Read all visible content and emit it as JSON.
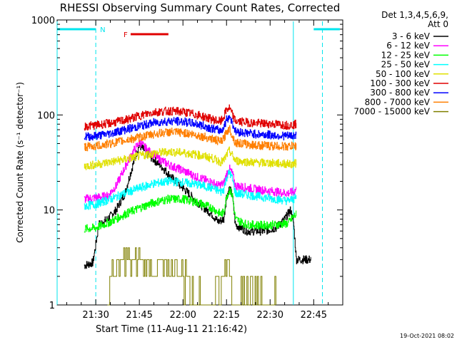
{
  "chart_data": {
    "type": "line",
    "title": "RHESSI Observing Summary Count Rates, Corrected",
    "xlabel": "Start Time (11-Aug-11 21:16:42)",
    "ylabel": "Corrected Count Rate (s⁻¹ detector⁻¹)",
    "y_scale": "log",
    "ylim": [
      1,
      1000
    ],
    "xlim": [
      "21:16",
      "22:54"
    ],
    "x_unit": "minutes after 21:00",
    "xlim_min": [
      16.7,
      115
    ],
    "x_ticks": [
      {
        "label": "21:30",
        "min": 30
      },
      {
        "label": "21:45",
        "min": 45
      },
      {
        "label": "22:00",
        "min": 60
      },
      {
        "label": "22:15",
        "min": 75
      },
      {
        "label": "22:30",
        "min": 90
      },
      {
        "label": "22:45",
        "min": 105
      }
    ],
    "y_ticks": [
      {
        "label": "1",
        "v": 1
      },
      {
        "label": "10",
        "v": 10
      },
      {
        "label": "100",
        "v": 100
      },
      {
        "label": "1000",
        "v": 1000
      }
    ],
    "grid": false,
    "legend_position": "top-right (outside plot)",
    "legend_header": [
      "Det 1,3,4,5,6,9,",
      "Att 0"
    ],
    "annotations": [
      {
        "label": "N",
        "color": "#00e5ee",
        "kind": "night",
        "segments": [
          [
            16.7,
            30
          ],
          [
            105,
            114
          ]
        ]
      },
      {
        "label": "F",
        "color": "#e00000",
        "kind": "flare",
        "segments": [
          [
            42,
            55
          ]
        ]
      }
    ],
    "vlines": [
      {
        "min": 16.7,
        "style": "solid",
        "color": "#00e5ee"
      },
      {
        "min": 30,
        "style": "dashed",
        "color": "#00e5ee"
      },
      {
        "min": 98,
        "style": "solid",
        "color": "#00e5ee"
      },
      {
        "min": 108,
        "style": "dashed",
        "color": "#00e5ee"
      }
    ],
    "footer": "19-Oct-2021 08:02",
    "series": [
      {
        "name": "3 - 6 keV",
        "color": "#000000",
        "points": [
          [
            26,
            2.6
          ],
          [
            29,
            2.8
          ],
          [
            31,
            7
          ],
          [
            34,
            8
          ],
          [
            37,
            10
          ],
          [
            40,
            15
          ],
          [
            42,
            25
          ],
          [
            44,
            40
          ],
          [
            45,
            48
          ],
          [
            48,
            38
          ],
          [
            52,
            30
          ],
          [
            56,
            22
          ],
          [
            60,
            17
          ],
          [
            65,
            12
          ],
          [
            70,
            9
          ],
          [
            72,
            7.5
          ],
          [
            74,
            8
          ],
          [
            75,
            14
          ],
          [
            76,
            17
          ],
          [
            77,
            14
          ],
          [
            78,
            7
          ],
          [
            82,
            6
          ],
          [
            88,
            6
          ],
          [
            92,
            6.5
          ],
          [
            95,
            8
          ],
          [
            97,
            10
          ],
          [
            98,
            7.5
          ],
          [
            99,
            3
          ],
          [
            102,
            3
          ],
          [
            104,
            3
          ]
        ]
      },
      {
        "name": "6 - 12 keV",
        "color": "#ff00ff",
        "points": [
          [
            26,
            13
          ],
          [
            30,
            13.5
          ],
          [
            34,
            14
          ],
          [
            37,
            18
          ],
          [
            40,
            28
          ],
          [
            43,
            42
          ],
          [
            45,
            52
          ],
          [
            48,
            42
          ],
          [
            52,
            34
          ],
          [
            56,
            29
          ],
          [
            60,
            26
          ],
          [
            65,
            22
          ],
          [
            70,
            19.5
          ],
          [
            72,
            18
          ],
          [
            74,
            19
          ],
          [
            75,
            24
          ],
          [
            76,
            27
          ],
          [
            77,
            24
          ],
          [
            78,
            18
          ],
          [
            85,
            16.5
          ],
          [
            92,
            15.5
          ],
          [
            96,
            15
          ],
          [
            98,
            15.5
          ],
          [
            99,
            16.5
          ]
        ]
      },
      {
        "name": "12 - 25 keV",
        "color": "#00ff00",
        "points": [
          [
            26,
            6.3
          ],
          [
            30,
            6.5
          ],
          [
            35,
            7.5
          ],
          [
            40,
            9
          ],
          [
            45,
            10.5
          ],
          [
            50,
            12
          ],
          [
            55,
            13
          ],
          [
            60,
            13
          ],
          [
            65,
            12
          ],
          [
            70,
            10.5
          ],
          [
            73,
            9
          ],
          [
            74,
            9.5
          ],
          [
            75,
            14
          ],
          [
            76,
            16.5
          ],
          [
            77,
            14
          ],
          [
            78,
            8
          ],
          [
            82,
            7
          ],
          [
            88,
            6.9
          ],
          [
            92,
            7
          ],
          [
            96,
            7.2
          ],
          [
            98,
            8.5
          ],
          [
            99,
            9
          ]
        ]
      },
      {
        "name": "25 - 50 keV",
        "color": "#00ffff",
        "points": [
          [
            26,
            11
          ],
          [
            30,
            11.5
          ],
          [
            35,
            13
          ],
          [
            40,
            15
          ],
          [
            45,
            17
          ],
          [
            50,
            19
          ],
          [
            55,
            20
          ],
          [
            60,
            19.5
          ],
          [
            65,
            18.5
          ],
          [
            70,
            17
          ],
          [
            73,
            15.5
          ],
          [
            74,
            16.5
          ],
          [
            75,
            22
          ],
          [
            76,
            25
          ],
          [
            77,
            21
          ],
          [
            78,
            15
          ],
          [
            85,
            14
          ],
          [
            92,
            13
          ],
          [
            96,
            12.5
          ],
          [
            98,
            13
          ],
          [
            99,
            13.5
          ]
        ]
      },
      {
        "name": "50 - 100 keV",
        "color": "#e0e000",
        "points": [
          [
            26,
            29
          ],
          [
            30,
            30
          ],
          [
            35,
            32
          ],
          [
            40,
            34
          ],
          [
            45,
            37
          ],
          [
            50,
            39.5
          ],
          [
            55,
            41
          ],
          [
            60,
            40
          ],
          [
            65,
            38
          ],
          [
            70,
            35
          ],
          [
            73,
            32
          ],
          [
            74,
            33
          ],
          [
            75,
            38
          ],
          [
            76,
            42
          ],
          [
            77,
            37
          ],
          [
            78,
            33
          ],
          [
            85,
            31.5
          ],
          [
            92,
            31
          ],
          [
            96,
            30.5
          ],
          [
            98,
            30.5
          ],
          [
            99,
            31
          ]
        ]
      },
      {
        "name": "100 - 300 keV",
        "color": "#e00000",
        "points": [
          [
            26,
            76
          ],
          [
            30,
            78
          ],
          [
            35,
            82
          ],
          [
            40,
            88
          ],
          [
            45,
            98
          ],
          [
            50,
            107
          ],
          [
            55,
            110
          ],
          [
            60,
            108
          ],
          [
            65,
            100
          ],
          [
            70,
            90
          ],
          [
            73,
            85
          ],
          [
            74,
            95
          ],
          [
            75,
            115
          ],
          [
            76,
            118
          ],
          [
            77,
            100
          ],
          [
            78,
            86
          ],
          [
            85,
            82
          ],
          [
            92,
            80
          ],
          [
            96,
            78
          ],
          [
            98,
            79
          ],
          [
            99,
            80
          ]
        ]
      },
      {
        "name": "300 - 800 keV",
        "color": "#0000ff",
        "points": [
          [
            26,
            59
          ],
          [
            30,
            60
          ],
          [
            35,
            64
          ],
          [
            40,
            70
          ],
          [
            45,
            76
          ],
          [
            50,
            83
          ],
          [
            55,
            86
          ],
          [
            60,
            85
          ],
          [
            65,
            80
          ],
          [
            70,
            72
          ],
          [
            73,
            68
          ],
          [
            74,
            74
          ],
          [
            75,
            90
          ],
          [
            76,
            97
          ],
          [
            77,
            82
          ],
          [
            78,
            67
          ],
          [
            85,
            63
          ],
          [
            92,
            61
          ],
          [
            96,
            60
          ],
          [
            98,
            60.5
          ],
          [
            99,
            61
          ]
        ]
      },
      {
        "name": "800 - 7000 keV",
        "color": "#ff7f00",
        "points": [
          [
            26,
            46
          ],
          [
            30,
            47
          ],
          [
            35,
            50
          ],
          [
            40,
            54
          ],
          [
            45,
            58
          ],
          [
            50,
            63
          ],
          [
            55,
            66
          ],
          [
            60,
            65
          ],
          [
            65,
            61
          ],
          [
            70,
            56
          ],
          [
            73,
            52
          ],
          [
            74,
            56
          ],
          [
            75,
            67
          ],
          [
            76,
            72
          ],
          [
            77,
            60
          ],
          [
            78,
            51
          ],
          [
            85,
            48
          ],
          [
            92,
            47
          ],
          [
            96,
            46.5
          ],
          [
            98,
            47
          ],
          [
            99,
            47
          ]
        ]
      },
      {
        "name": "7000 - 15000 keV",
        "color": "#7f7f00",
        "points": [
          [
            34,
            1
          ],
          [
            35,
            2
          ],
          [
            37,
            2.5
          ],
          [
            40,
            3
          ],
          [
            45,
            3
          ],
          [
            47,
            2.5
          ],
          [
            50,
            2.3
          ],
          [
            55,
            2.3
          ],
          [
            60,
            2
          ],
          [
            63,
            1.5
          ],
          [
            66,
            1
          ],
          [
            70,
            1
          ],
          [
            73,
            1.5
          ],
          [
            74,
            2.5
          ],
          [
            75,
            3
          ],
          [
            76,
            2.5
          ],
          [
            77,
            1.5
          ],
          [
            78,
            1
          ],
          [
            84,
            1.3
          ],
          [
            88,
            1
          ],
          [
            92,
            1
          ]
        ]
      }
    ]
  }
}
